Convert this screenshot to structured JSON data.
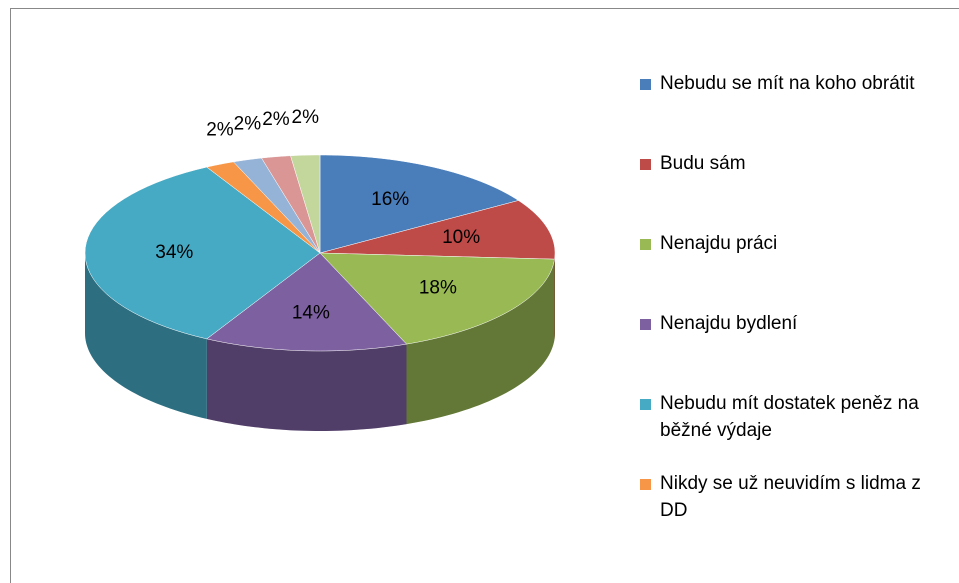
{
  "chart_data": {
    "type": "pie",
    "categories": [
      "Nebudu se mít na koho obrátit",
      "Budu sám",
      "Nenajdu práci",
      "Nenajdu bydlení",
      "Nebudu mít dostatek peněz na běžné výdaje",
      "Nikdy se už neuvidím s lidma z DD",
      null,
      null,
      null
    ],
    "values": [
      16,
      10,
      18,
      14,
      34,
      2,
      2,
      2,
      2
    ],
    "value_labels": [
      "16%",
      "10%",
      "18%",
      "14%",
      "34%",
      "2%",
      "2%",
      "2%",
      "2%"
    ],
    "colors": [
      "#4a7ebb",
      "#be4b48",
      "#98b954",
      "#7d60a0",
      "#46aac5",
      "#f79646",
      "#95b3d7",
      "#d99694",
      "#c3d69b"
    ],
    "legend": "right"
  }
}
